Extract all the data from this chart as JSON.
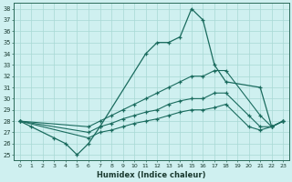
{
  "title": "",
  "xlabel": "Humidex (Indice chaleur)",
  "bg_color": "#cff0f0",
  "grid_color": "#a8d8d4",
  "line_color": "#1a6b5e",
  "xmin": 0,
  "xmax": 23,
  "ymin": 25,
  "ymax": 38,
  "yticks": [
    25,
    26,
    27,
    28,
    29,
    30,
    31,
    32,
    33,
    34,
    35,
    36,
    37,
    38
  ],
  "xtick_labels": [
    "0",
    "1",
    "2",
    "3",
    "4",
    "5",
    "6",
    "7",
    "8",
    "9",
    "10",
    "11",
    "12",
    "13",
    "14",
    "15",
    "16",
    "17",
    "18",
    "19",
    "20",
    "21",
    "22",
    "23"
  ],
  "line1_x": [
    0,
    1,
    3,
    4,
    5,
    6,
    7,
    11,
    12,
    13,
    14,
    15,
    16,
    17,
    18,
    21,
    22,
    23
  ],
  "line1_y": [
    28,
    27.5,
    26.5,
    26,
    25,
    26,
    27.5,
    34,
    35,
    35,
    35.5,
    38,
    37,
    33,
    31.5,
    31,
    27.5,
    28
  ],
  "line2_x": [
    0,
    6,
    7,
    8,
    9,
    10,
    11,
    12,
    13,
    14,
    15,
    16,
    17,
    18,
    21,
    22,
    23
  ],
  "line2_y": [
    28,
    27.5,
    28,
    28.5,
    29,
    29.5,
    30,
    30.5,
    31,
    31.5,
    32,
    32,
    32.5,
    32.5,
    28.5,
    27.5,
    28
  ],
  "line3_x": [
    0,
    6,
    7,
    8,
    9,
    10,
    11,
    12,
    13,
    14,
    15,
    16,
    17,
    18,
    20,
    21,
    22,
    23
  ],
  "line3_y": [
    28,
    27,
    27.5,
    27.8,
    28.2,
    28.5,
    28.8,
    29,
    29.5,
    29.8,
    30,
    30,
    30.5,
    30.5,
    28.5,
    27.5,
    27.5,
    28
  ],
  "line4_x": [
    0,
    6,
    7,
    8,
    9,
    10,
    11,
    12,
    13,
    14,
    15,
    16,
    17,
    18,
    20,
    21,
    22,
    23
  ],
  "line4_y": [
    28,
    26.5,
    27,
    27.2,
    27.5,
    27.8,
    28,
    28.2,
    28.5,
    28.8,
    29,
    29,
    29.2,
    29.5,
    27.5,
    27.2,
    27.5,
    28
  ]
}
